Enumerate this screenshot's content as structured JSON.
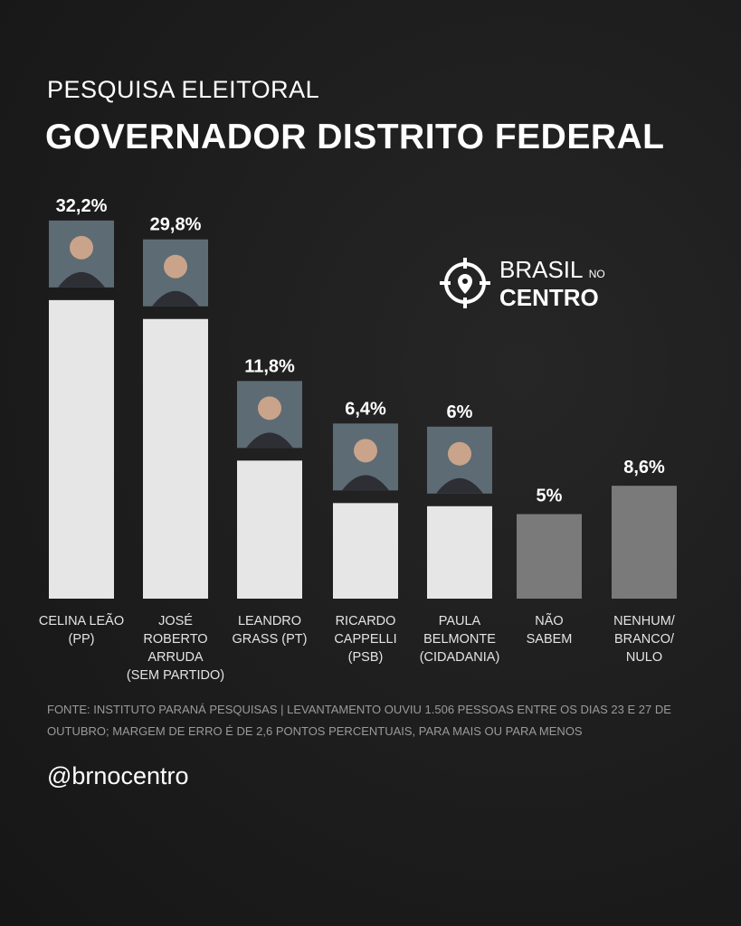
{
  "header": {
    "subtitle": "PESQUISA ELEITORAL",
    "title": "GOVERNADOR DISTRITO FEDERAL"
  },
  "logo": {
    "line1": "BRASIL",
    "line1_small": "NO",
    "line2": "CENTRO",
    "icon": "crosshair-pin-icon"
  },
  "chart_data": {
    "type": "bar",
    "categories": [
      "CELINA LEÃO (PP)",
      "JOSÉ ROBERTO ARRUDA (SEM PARTIDO)",
      "LEANDRO GRASS (PT)",
      "RICARDO CAPPELLI (PSB)",
      "PAULA BELMONTE (CIDADANIA)",
      "NÃO SABEM",
      "NENHUM/ BRANCO/ NULO"
    ],
    "values": [
      32.2,
      29.8,
      11.8,
      6.4,
      6,
      5,
      8.6
    ],
    "value_labels": [
      "32,2%",
      "29,8%",
      "11,8%",
      "6,4%",
      "6%",
      "5%",
      "8,6%"
    ],
    "has_photo": [
      true,
      true,
      true,
      true,
      true,
      false,
      false
    ],
    "colors": {
      "candidate": "#e6e6e6",
      "other": "#7a7a7a"
    }
  },
  "footer": {
    "source": "FONTE: INSTITUTO PARANÁ PESQUISAS | LEVANTAMENTO OUVIU 1.506 PESSOAS ENTRE OS DIAS 23 E 27 DE OUTUBRO; MARGEM DE ERRO É DE 2,6 PONTOS PERCENTUAIS, PARA MAIS OU PARA MENOS",
    "handle": "@brnocentro"
  }
}
